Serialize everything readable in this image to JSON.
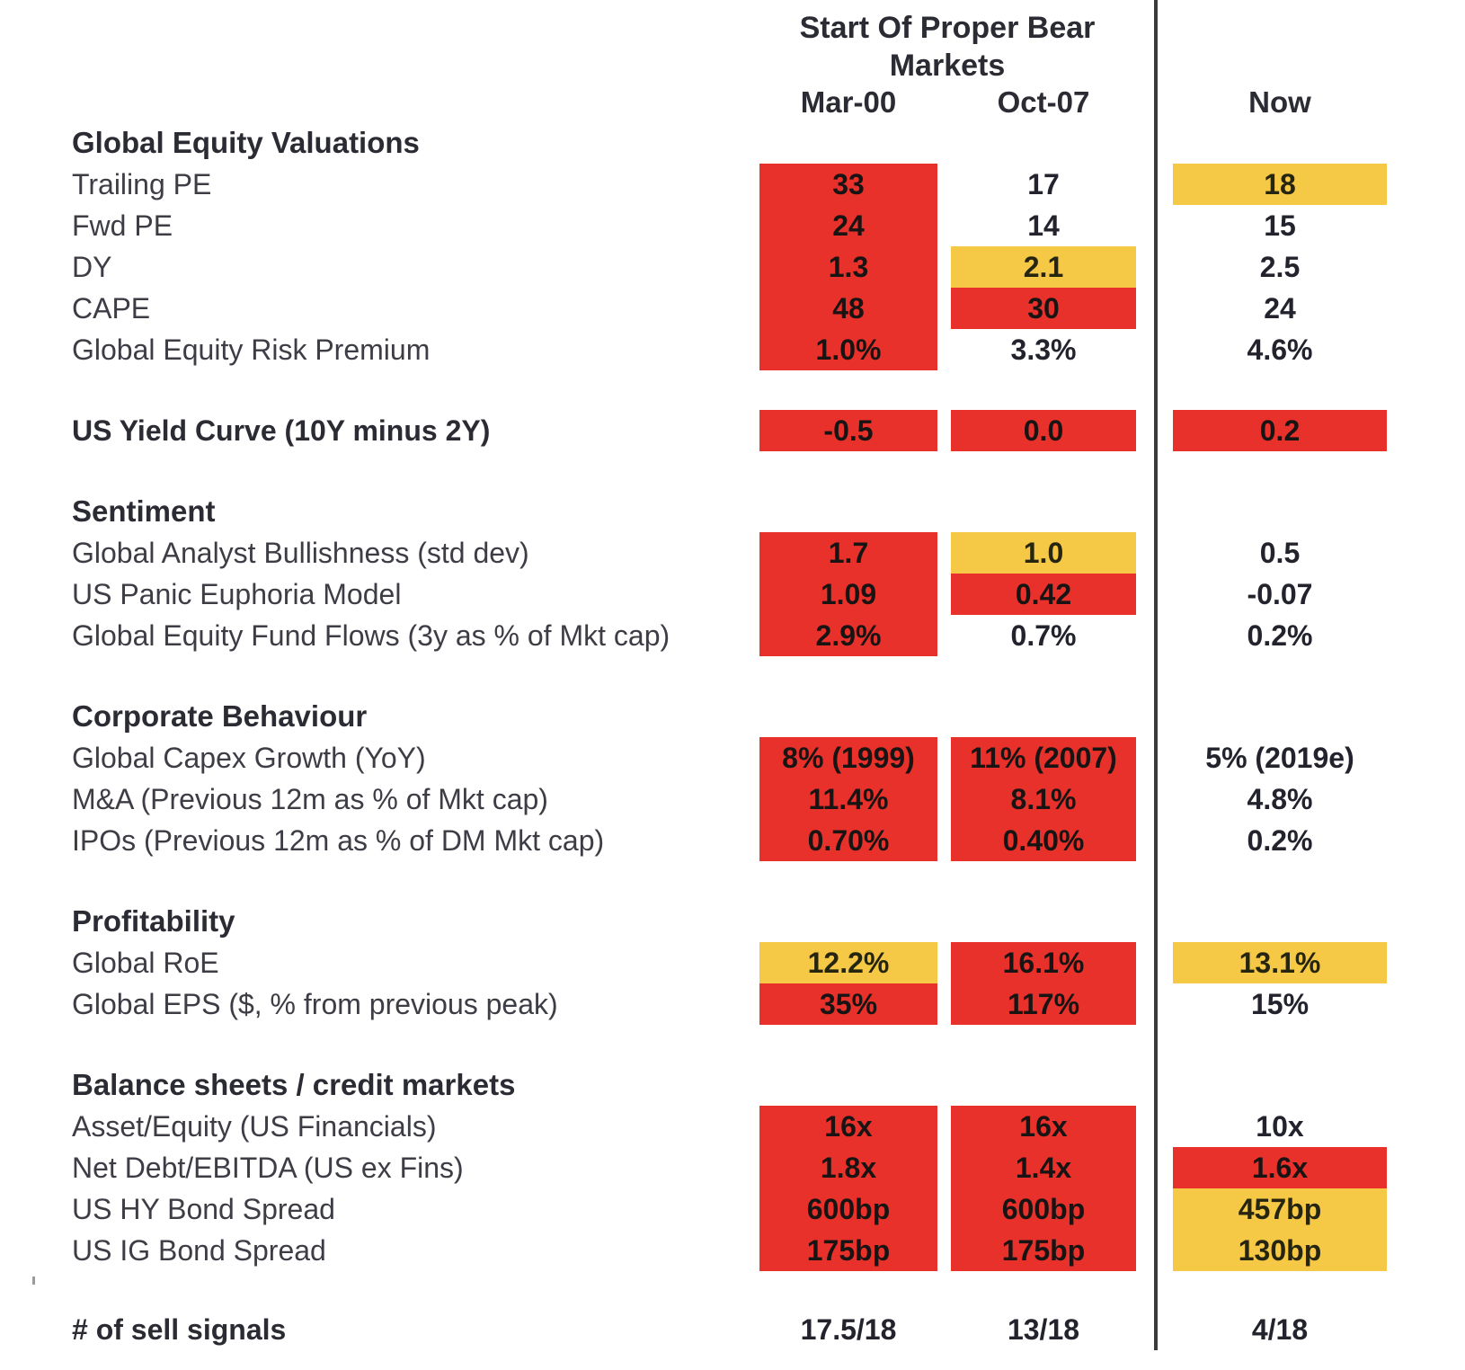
{
  "colors": {
    "red": "#e8312a",
    "yellow": "#f5c945",
    "divider": "#3b3b3b"
  },
  "header": {
    "title_line1": "Start Of Proper Bear",
    "title_line2": "Markets",
    "columns": [
      "Mar-00",
      "Oct-07",
      "Now"
    ]
  },
  "sections": [
    {
      "title": "Global Equity Valuations",
      "rows": [
        {
          "label": "Trailing PE",
          "values": [
            {
              "text": "33",
              "highlight": "red"
            },
            {
              "text": "17",
              "highlight": "none"
            },
            {
              "text": "18",
              "highlight": "yellow"
            }
          ]
        },
        {
          "label": "Fwd PE",
          "values": [
            {
              "text": "24",
              "highlight": "red"
            },
            {
              "text": "14",
              "highlight": "none"
            },
            {
              "text": "15",
              "highlight": "none"
            }
          ]
        },
        {
          "label": "DY",
          "values": [
            {
              "text": "1.3",
              "highlight": "red"
            },
            {
              "text": "2.1",
              "highlight": "yellow"
            },
            {
              "text": "2.5",
              "highlight": "none"
            }
          ]
        },
        {
          "label": "CAPE",
          "values": [
            {
              "text": "48",
              "highlight": "red"
            },
            {
              "text": "30",
              "highlight": "red"
            },
            {
              "text": "24",
              "highlight": "none"
            }
          ]
        },
        {
          "label": "Global Equity Risk Premium",
          "values": [
            {
              "text": "1.0%",
              "highlight": "red"
            },
            {
              "text": "3.3%",
              "highlight": "none"
            },
            {
              "text": "4.6%",
              "highlight": "none"
            }
          ]
        }
      ]
    },
    {
      "title": "Sentiment",
      "rows": [
        {
          "label": "Global Analyst Bullishness (std dev)",
          "values": [
            {
              "text": "1.7",
              "highlight": "red"
            },
            {
              "text": "1.0",
              "highlight": "yellow"
            },
            {
              "text": "0.5",
              "highlight": "none"
            }
          ]
        },
        {
          "label": "US Panic Euphoria Model",
          "values": [
            {
              "text": "1.09",
              "highlight": "red"
            },
            {
              "text": "0.42",
              "highlight": "red"
            },
            {
              "text": "-0.07",
              "highlight": "none"
            }
          ]
        },
        {
          "label": "Global Equity Fund Flows (3y as % of Mkt cap)",
          "values": [
            {
              "text": "2.9%",
              "highlight": "red"
            },
            {
              "text": "0.7%",
              "highlight": "none"
            },
            {
              "text": "0.2%",
              "highlight": "none"
            }
          ]
        }
      ]
    },
    {
      "title": "Corporate Behaviour",
      "rows": [
        {
          "label": "Global Capex Growth (YoY)",
          "values": [
            {
              "text": "8% (1999)",
              "highlight": "red"
            },
            {
              "text": "11% (2007)",
              "highlight": "red"
            },
            {
              "text": "5% (2019e)",
              "highlight": "none"
            }
          ]
        },
        {
          "label": "M&A (Previous 12m as % of Mkt cap)",
          "values": [
            {
              "text": "11.4%",
              "highlight": "red"
            },
            {
              "text": "8.1%",
              "highlight": "red"
            },
            {
              "text": "4.8%",
              "highlight": "none"
            }
          ]
        },
        {
          "label": "IPOs (Previous 12m as % of DM Mkt cap)",
          "values": [
            {
              "text": "0.70%",
              "highlight": "red"
            },
            {
              "text": "0.40%",
              "highlight": "red"
            },
            {
              "text": "0.2%",
              "highlight": "none"
            }
          ]
        }
      ]
    },
    {
      "title": "Profitability",
      "rows": [
        {
          "label": "Global RoE",
          "values": [
            {
              "text": "12.2%",
              "highlight": "yellow"
            },
            {
              "text": "16.1%",
              "highlight": "red"
            },
            {
              "text": "13.1%",
              "highlight": "yellow"
            }
          ]
        },
        {
          "label": "Global EPS  ($, % from previous peak)",
          "values": [
            {
              "text": "35%",
              "highlight": "red"
            },
            {
              "text": "117%",
              "highlight": "red"
            },
            {
              "text": "15%",
              "highlight": "none"
            }
          ]
        }
      ]
    },
    {
      "title": "Balance sheets / credit markets",
      "rows": [
        {
          "label": "Asset/Equity (US Financials)",
          "values": [
            {
              "text": "16x",
              "highlight": "red"
            },
            {
              "text": "16x",
              "highlight": "red"
            },
            {
              "text": "10x",
              "highlight": "none"
            }
          ]
        },
        {
          "label": "Net Debt/EBITDA (US ex Fins)",
          "values": [
            {
              "text": "1.8x",
              "highlight": "red"
            },
            {
              "text": "1.4x",
              "highlight": "red"
            },
            {
              "text": "1.6x",
              "highlight": "red"
            }
          ]
        },
        {
          "label": "US HY Bond Spread",
          "values": [
            {
              "text": "600bp",
              "highlight": "red"
            },
            {
              "text": "600bp",
              "highlight": "red"
            },
            {
              "text": "457bp",
              "highlight": "yellow"
            }
          ]
        },
        {
          "label": "US IG Bond Spread",
          "values": [
            {
              "text": "175bp",
              "highlight": "red"
            },
            {
              "text": "175bp",
              "highlight": "red"
            },
            {
              "text": "130bp",
              "highlight": "yellow"
            }
          ]
        }
      ]
    }
  ],
  "yield_curve_row": {
    "label": "US Yield Curve (10Y minus 2Y)",
    "values": [
      {
        "text": "-0.5",
        "highlight": "red"
      },
      {
        "text": "0.0",
        "highlight": "red"
      },
      {
        "text": "0.2",
        "highlight": "red"
      }
    ]
  },
  "footer_row": {
    "label": "# of sell signals",
    "values": [
      {
        "text": "17.5/18",
        "highlight": "none"
      },
      {
        "text": "13/18",
        "highlight": "none"
      },
      {
        "text": "4/18",
        "highlight": "none"
      }
    ]
  }
}
